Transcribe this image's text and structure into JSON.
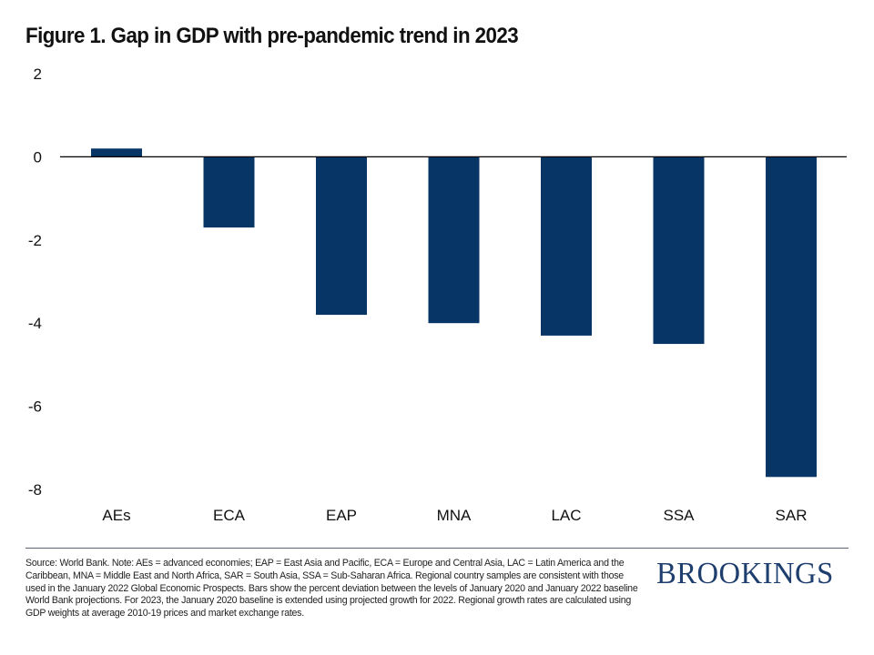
{
  "title": "Figure 1. Gap in GDP with pre-pandemic trend in 2023",
  "chart_data": {
    "type": "bar",
    "title": "Figure 1. Gap in GDP with pre-pandemic trend in 2023",
    "xlabel": "",
    "ylabel": "",
    "categories": [
      "AEs",
      "ECA",
      "EAP",
      "MNA",
      "LAC",
      "SSA",
      "SAR"
    ],
    "values": [
      0.2,
      -1.7,
      -3.8,
      -4.0,
      -4.3,
      -4.5,
      -7.7
    ],
    "ylim": [
      -8,
      2
    ],
    "yticks": [
      2,
      0,
      -2,
      -4,
      -6,
      -8
    ],
    "ytick_labels": [
      "2",
      "0",
      "-2",
      "-4",
      "-6",
      "-8"
    ],
    "grid": false,
    "legend": "none",
    "bar_color": "#063566",
    "zero_line_color": "#000000"
  },
  "footer": {
    "note": "Source: World Bank. Note: AEs = advanced economies; EAP = East Asia and Pacific, ECA = Europe and Central Asia, LAC = Latin America and the Caribbean, MNA = Middle East and North Africa, SAR = South Asia, SSA = Sub-Saharan Africa. Regional country samples are consistent with those used in the January 2022 Global Economic Prospects. Bars show the percent deviation between the levels of January 2020 and January 2022 baseline World Bank projections. For 2023, the January 2020 baseline is extended using projected growth for 2022. Regional growth rates are calculated using GDP weights at average 2010-19 prices and market exchange rates.",
    "logo": "BROOKINGS",
    "logo_color": "#1e3e6e"
  }
}
